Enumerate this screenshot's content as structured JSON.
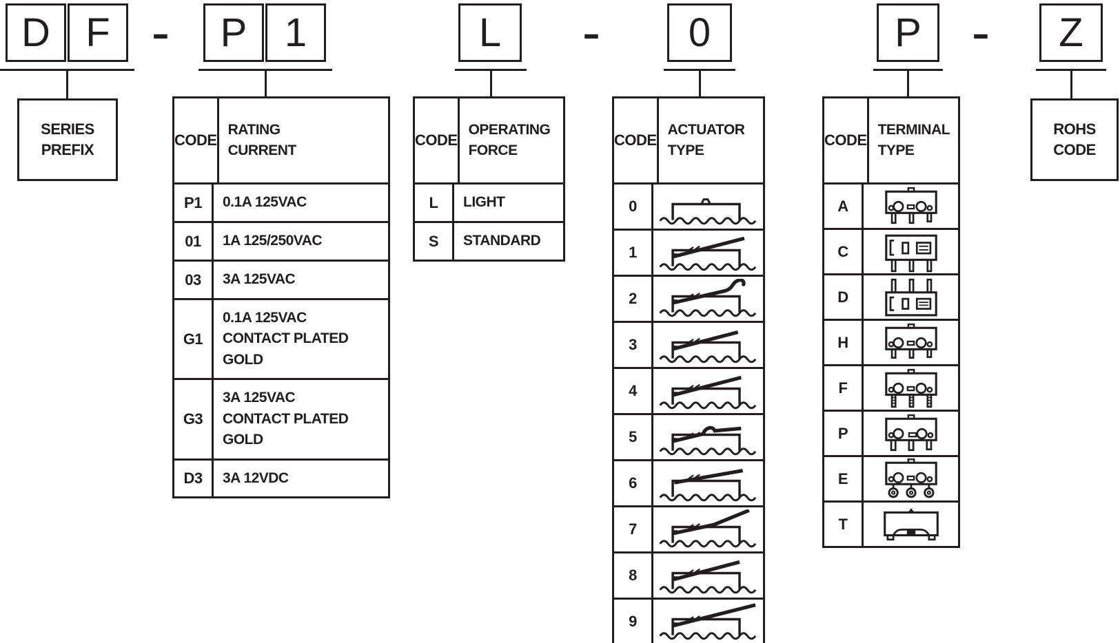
{
  "part_code": {
    "series_chars": [
      "D",
      "F"
    ],
    "rating_chars": [
      "P",
      "1"
    ],
    "force_chars": [
      "L"
    ],
    "actuator_chars": [
      "0"
    ],
    "terminal_chars": [
      "P"
    ],
    "rohs_chars": [
      "Z"
    ],
    "dash": "-"
  },
  "callouts": {
    "series_prefix": "SERIES\nPREFIX",
    "rohs_code": "ROHS\nCODE"
  },
  "tables": {
    "rating": {
      "code_header": "CODE",
      "title": "RATING\nCURRENT",
      "rows": [
        {
          "code": "P1",
          "desc": "0.1A 125VAC"
        },
        {
          "code": "01",
          "desc": "1A 125/250VAC"
        },
        {
          "code": "03",
          "desc": "3A 125VAC"
        },
        {
          "code": "G1",
          "desc": "0.1A 125VAC\nCONTACT PLATED\nGOLD"
        },
        {
          "code": "G3",
          "desc": "3A 125VAC\nCONTACT PLATED\nGOLD"
        },
        {
          "code": "D3",
          "desc": "3A 12VDC"
        }
      ]
    },
    "force": {
      "code_header": "CODE",
      "title": "OPERATING\nFORCE",
      "rows": [
        {
          "code": "L",
          "desc": "LIGHT"
        },
        {
          "code": "S",
          "desc": "STANDARD"
        }
      ]
    },
    "actuator": {
      "code_header": "CODE",
      "title": "ACTUATOR\nTYPE",
      "rows": [
        {
          "code": "0",
          "icon": "pin-plunger-icon"
        },
        {
          "code": "1",
          "icon": "hinge-lever-icon"
        },
        {
          "code": "2",
          "icon": "hook-lever-icon"
        },
        {
          "code": "3",
          "icon": "hinge-lever-short-icon"
        },
        {
          "code": "4",
          "icon": "hinge-lever-icon"
        },
        {
          "code": "5",
          "icon": "simulated-roller-lever-icon"
        },
        {
          "code": "6",
          "icon": "low-lever-icon"
        },
        {
          "code": "7",
          "icon": "bent-lever-icon"
        },
        {
          "code": "8",
          "icon": "hinge-lever-icon"
        },
        {
          "code": "9",
          "icon": "long-lever-icon"
        }
      ]
    },
    "terminal": {
      "code_header": "CODE",
      "title": "TERMINAL\nTYPE",
      "rows": [
        {
          "code": "A",
          "icon": "solder-terminal-icon"
        },
        {
          "code": "C",
          "icon": "pcb-straight-pin-icon"
        },
        {
          "code": "D",
          "icon": "pcb-pin-up-icon"
        },
        {
          "code": "H",
          "icon": "short-pin-terminal-icon"
        },
        {
          "code": "F",
          "icon": "ribbed-pin-terminal-icon"
        },
        {
          "code": "P",
          "icon": "wide-pin-terminal-icon"
        },
        {
          "code": "E",
          "icon": "eyelet-terminal-icon"
        },
        {
          "code": "T",
          "icon": "tab-terminal-icon"
        }
      ]
    }
  }
}
